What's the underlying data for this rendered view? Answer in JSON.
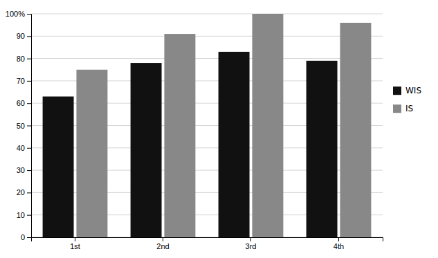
{
  "chart_data": {
    "type": "bar",
    "categories": [
      "1st",
      "2nd",
      "3rd",
      "4th"
    ],
    "series": [
      {
        "name": "WIS",
        "color": "#111111",
        "values": [
          63,
          78,
          83,
          79
        ]
      },
      {
        "name": "IS",
        "color": "#888888",
        "values": [
          75,
          91,
          100,
          96
        ]
      }
    ],
    "ylim": [
      0,
      100
    ],
    "yticks": [
      0,
      10,
      20,
      30,
      40,
      50,
      60,
      70,
      80,
      90,
      {
        "value": 100,
        "label": "100%"
      }
    ],
    "grid": true,
    "legend": "right"
  }
}
